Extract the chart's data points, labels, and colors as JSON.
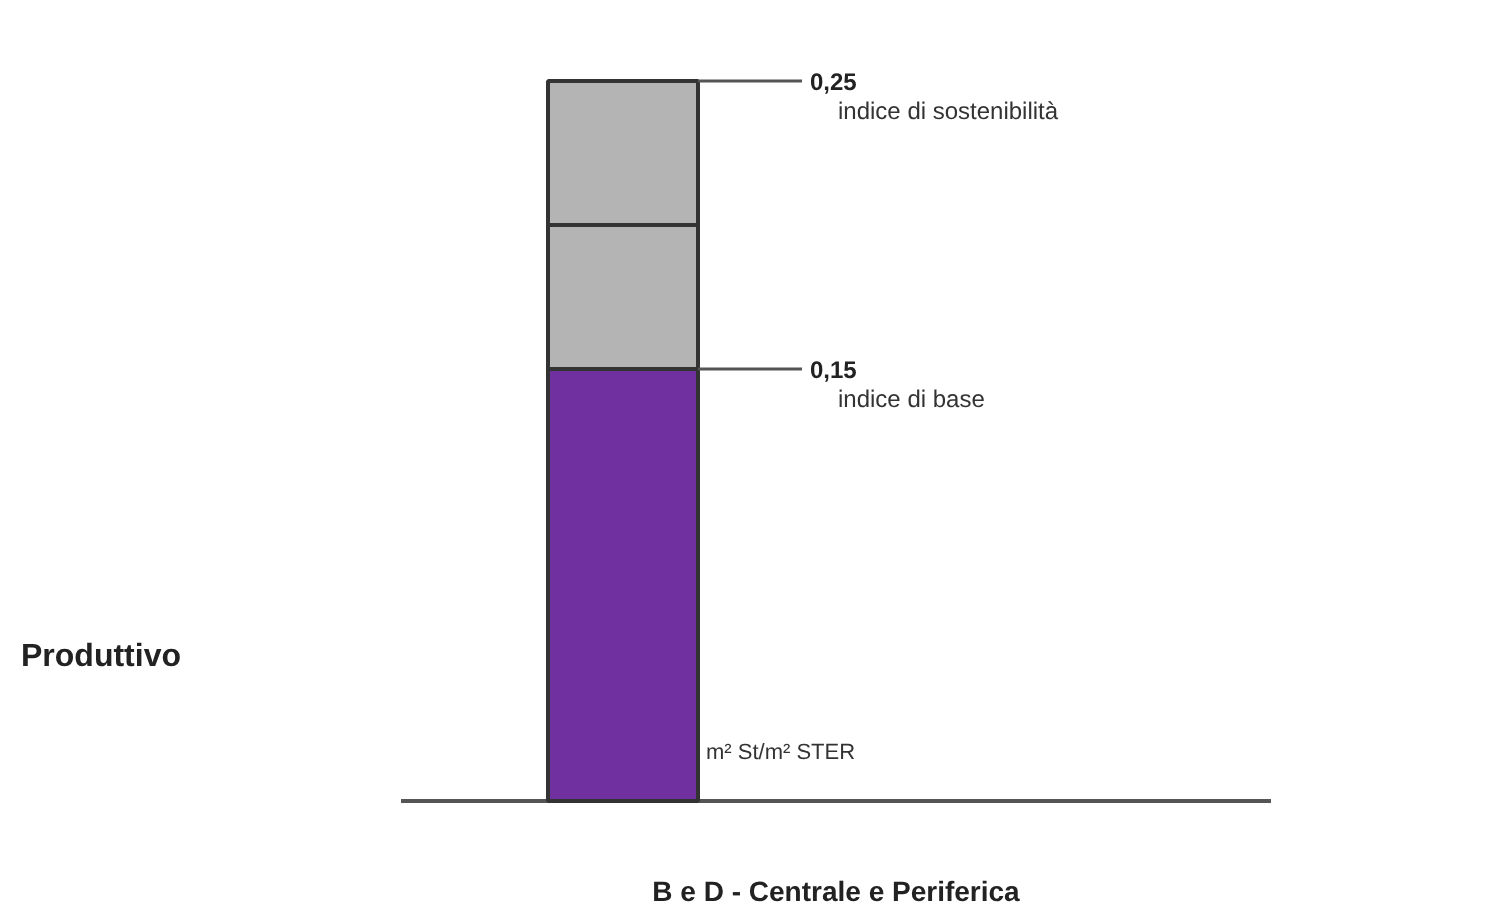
{
  "chart_data": {
    "type": "bar",
    "stacked": true,
    "xlabel": "B e D - Centrale e Periferica",
    "categories": [
      null
    ],
    "series": [
      {
        "color": "#7030a0",
        "values": [
          0.15
        ]
      },
      {
        "color": "#b4b4b4",
        "values": [
          0.05
        ]
      },
      {
        "color": "#b4b4b4",
        "values": [
          0.05
        ]
      }
    ],
    "ylim": [
      0,
      0.25
    ],
    "yticks": [
      {
        "value": 0.15,
        "label": "0,15"
      },
      {
        "value": 0.25,
        "label": "0,25"
      }
    ],
    "ref_lines": [
      {
        "axis": "y",
        "value": 0.25,
        "label": "indice di sostenibilità"
      },
      {
        "axis": "y",
        "value": 0.15,
        "label": "indice di base"
      }
    ],
    "annotations": [
      "m² St/m² STER",
      "Produttivo"
    ],
    "grid": false
  }
}
